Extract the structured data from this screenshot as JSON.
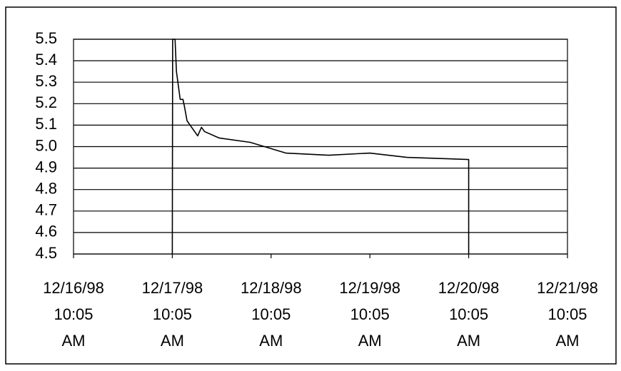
{
  "chart_data": {
    "type": "line",
    "x": [
      "1998-12-17T10:05",
      "1998-12-17T10:10",
      "1998-12-17T10:45",
      "1998-12-17T11:05",
      "1998-12-17T12:00",
      "1998-12-17T12:40",
      "1998-12-17T13:00",
      "1998-12-17T13:40",
      "1998-12-17T16:15",
      "1998-12-17T17:10",
      "1998-12-17T17:55",
      "1998-12-17T21:30",
      "1998-12-18T05:00",
      "1998-12-18T13:40",
      "1998-12-19T00:05",
      "1998-12-19T10:05",
      "1998-12-19T19:05",
      "1998-12-20T10:05",
      "1998-12-20T10:05"
    ],
    "series": [
      {
        "color": "#000000",
        "values": [
          4.5,
          5.5,
          5.5,
          5.35,
          5.22,
          5.22,
          5.19,
          5.12,
          5.05,
          5.09,
          5.07,
          5.04,
          5.02,
          4.97,
          4.96,
          4.97,
          4.95,
          4.94,
          4.5
        ]
      }
    ],
    "xlim": [
      "1998-12-16T10:05",
      "1998-12-21T10:05"
    ],
    "xticks": [
      {
        "value": "1998-12-16T10:05",
        "label": "12/16/98 10:05 AM"
      },
      {
        "value": "1998-12-17T10:05",
        "label": "12/17/98 10:05 AM"
      },
      {
        "value": "1998-12-18T10:05",
        "label": "12/18/98 10:05 AM"
      },
      {
        "value": "1998-12-19T10:05",
        "label": "12/19/98 10:05 AM"
      },
      {
        "value": "1998-12-20T10:05",
        "label": "12/20/98 10:05 AM"
      },
      {
        "value": "1998-12-21T10:05",
        "label": "12/21/98 10:05 AM"
      }
    ],
    "ylim": [
      4.5,
      5.5
    ],
    "yticks": [
      4.5,
      4.6,
      4.7,
      4.8,
      4.9,
      {
        "value": 5,
        "label": "5.0"
      },
      5.1,
      5.2,
      5.3,
      5.4,
      5.5
    ],
    "grid": true
  }
}
